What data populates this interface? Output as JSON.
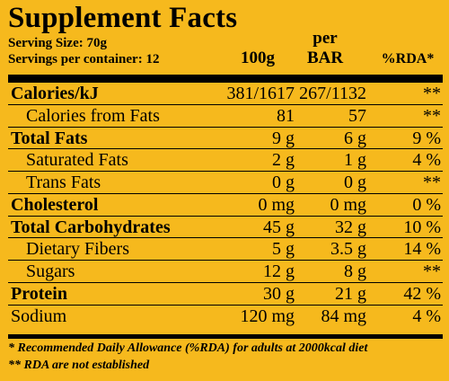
{
  "title": "Supplement Facts",
  "serving_size": "Serving Size: 70g",
  "servings_per_container": "Servings per container: 12",
  "columns": {
    "per100": "100g",
    "per_label": "per",
    "bar": "BAR",
    "rda": "%RDA*"
  },
  "rows": [
    {
      "label": "Calories/kJ",
      "v100": "381/1617",
      "vbar": "267/1132",
      "rda": "**",
      "bold": true,
      "sub": false
    },
    {
      "label": "Calories from Fats",
      "v100": "81",
      "vbar": "57",
      "rda": "**",
      "bold": false,
      "sub": true
    },
    {
      "label": "Total Fats",
      "v100": "9 g",
      "vbar": "6 g",
      "rda": "9 %",
      "bold": true,
      "sub": false
    },
    {
      "label": "Saturated Fats",
      "v100": "2 g",
      "vbar": "1 g",
      "rda": "4 %",
      "bold": false,
      "sub": true
    },
    {
      "label": "Trans Fats",
      "v100": "0 g",
      "vbar": "0 g",
      "rda": "**",
      "bold": false,
      "sub": true
    },
    {
      "label": "Cholesterol",
      "v100": "0 mg",
      "vbar": "0 mg",
      "rda": "0 %",
      "bold": true,
      "sub": false
    },
    {
      "label": "Total Carbohydrates",
      "v100": "45 g",
      "vbar": "32 g",
      "rda": "10 %",
      "bold": true,
      "sub": false
    },
    {
      "label": "Dietary Fibers",
      "v100": "5 g",
      "vbar": "3.5 g",
      "rda": "14 %",
      "bold": false,
      "sub": true
    },
    {
      "label": "Sugars",
      "v100": "12 g",
      "vbar": "8 g",
      "rda": "**",
      "bold": false,
      "sub": true
    },
    {
      "label": "Protein",
      "v100": "30 g",
      "vbar": "21 g",
      "rda": "42 %",
      "bold": true,
      "sub": false
    },
    {
      "label": "Sodium",
      "v100": "120 mg",
      "vbar": "84 mg",
      "rda": "4 %",
      "bold": false,
      "sub": false
    }
  ],
  "footnotes": {
    "rda_note": "* Recommended Daily Allowance (%RDA) for adults at 2000kcal diet",
    "not_established": "** RDA are not established"
  },
  "colors": {
    "background": "#f6b91d",
    "text": "#000000"
  }
}
